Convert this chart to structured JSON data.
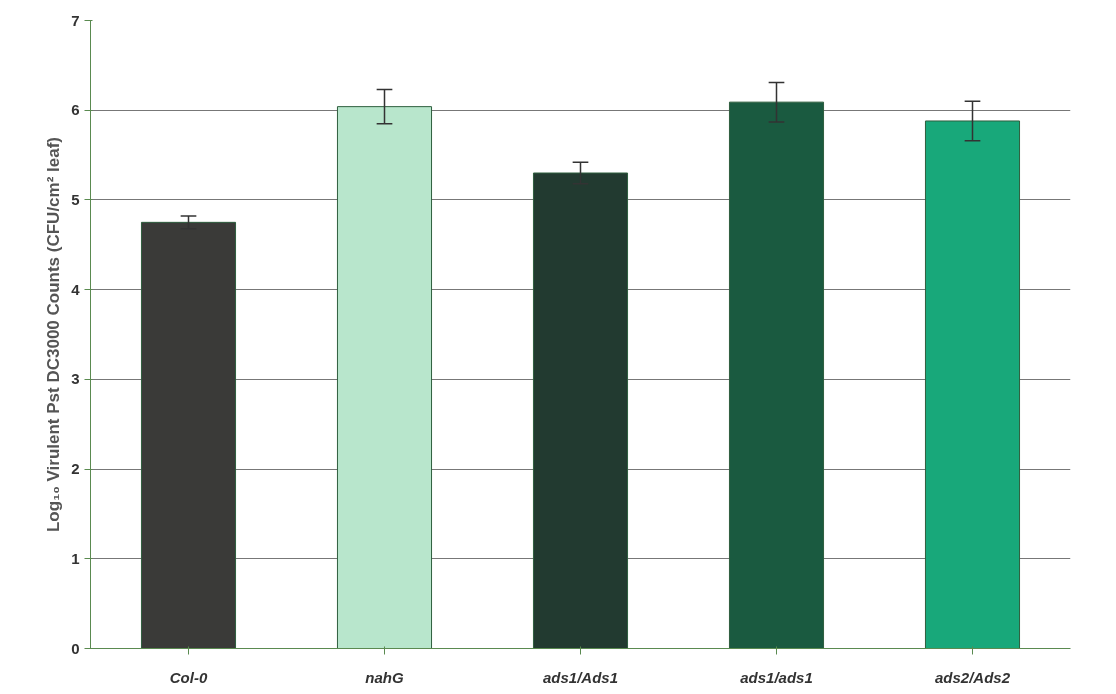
{
  "chart_data": {
    "type": "bar",
    "ylabel": "Log₁₀ Virulent Pst DC3000 Counts (CFU/cm² leaf)",
    "categories": [
      "Col-0",
      "nahG",
      "ads1/Ads1",
      "ads1/ads1",
      "ads2/Ads2"
    ],
    "values": [
      4.75,
      6.04,
      5.3,
      6.09,
      5.88
    ],
    "errors": [
      0.07,
      0.19,
      0.12,
      0.22,
      0.22
    ],
    "colors": [
      "#3a3a38",
      "#b8e6cc",
      "#223a30",
      "#1a5a40",
      "#18a87a"
    ],
    "ylim": [
      0,
      7
    ],
    "yticks": [
      0,
      1,
      2,
      3,
      4,
      5,
      6,
      7
    ],
    "grid": "y"
  }
}
